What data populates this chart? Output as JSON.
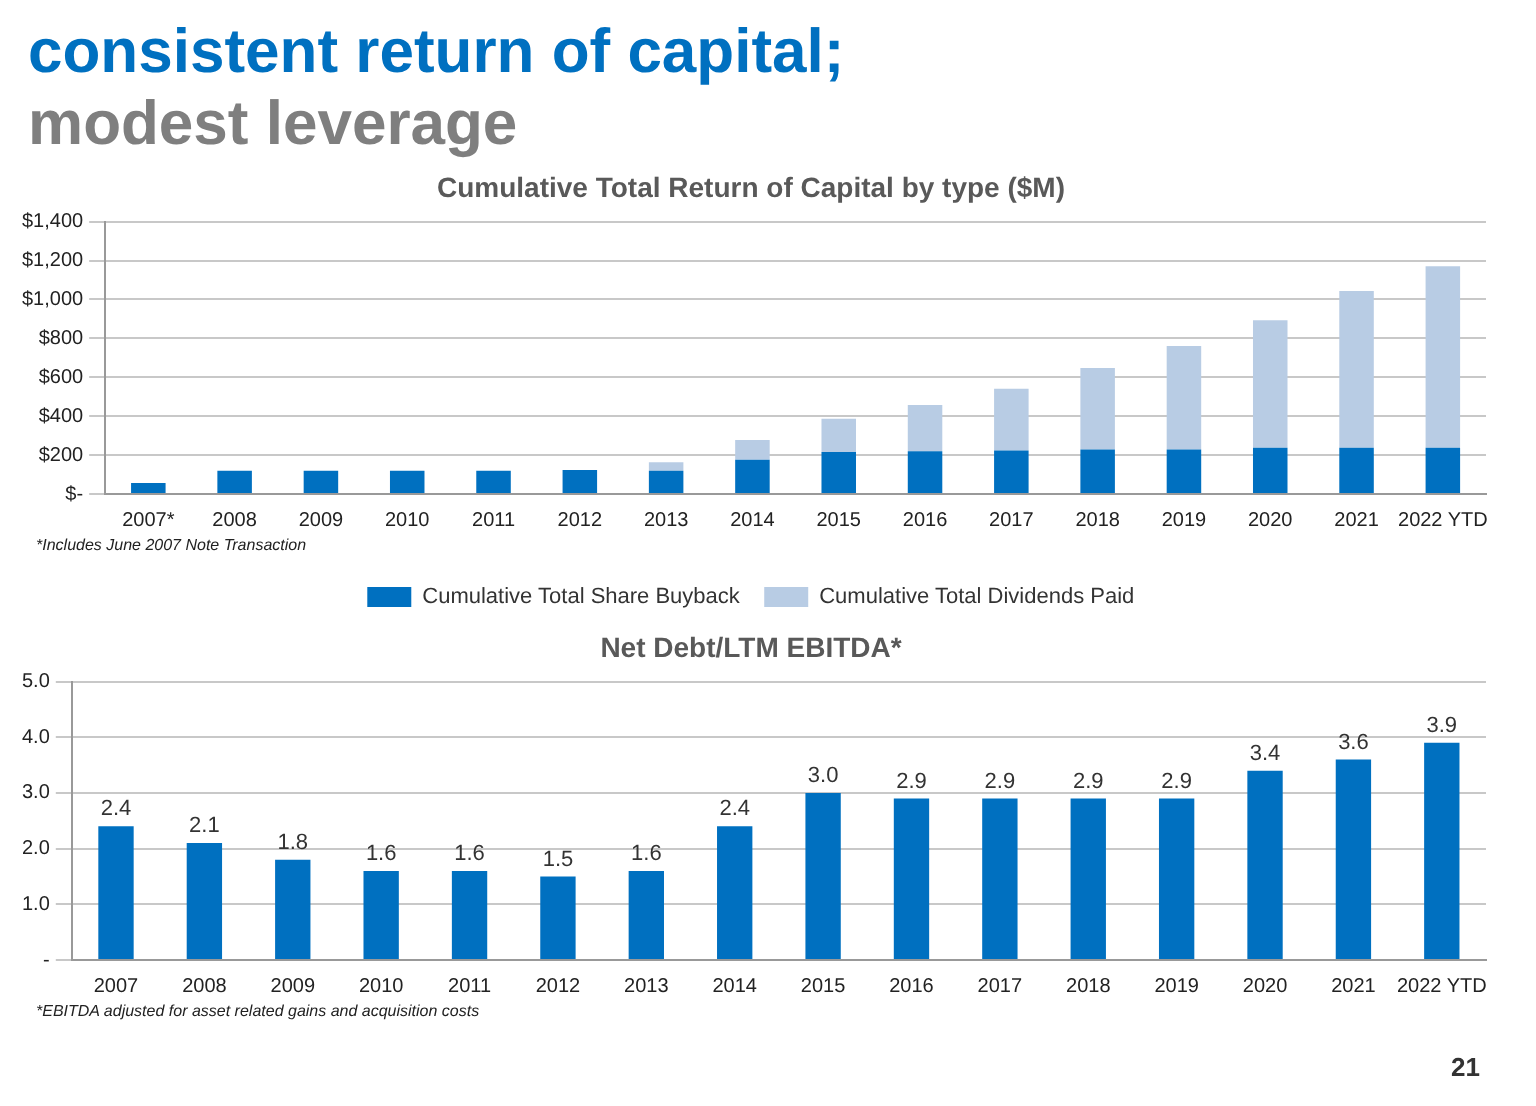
{
  "chart_data": [
    {
      "type": "bar",
      "title": "Cumulative Total Return of Capital by type ($M)",
      "stacked": true,
      "legend": "bottom",
      "grid": "y",
      "categories": [
        "2007*",
        "2008",
        "2009",
        "2010",
        "2011",
        "2012",
        "2013",
        "2014",
        "2015",
        "2016",
        "2017",
        "2018",
        "2019",
        "2020",
        "2021",
        "2022 YTD"
      ],
      "series": [
        {
          "name": "Cumulative Total Share Buyback",
          "color": "#0070c0",
          "values": [
            57,
            119,
            120,
            120,
            120,
            123,
            120,
            176,
            216,
            220,
            224,
            229,
            229,
            238,
            238,
            238
          ]
        },
        {
          "name": "Cumulative Total Dividends Paid",
          "color": "#b8cce4",
          "values": [
            0,
            0,
            0,
            0,
            0,
            0,
            43,
            101,
            171,
            238,
            317,
            418,
            532,
            655,
            805,
            932
          ]
        }
      ],
      "ylim": [
        0,
        1400
      ],
      "yticks": [
        {
          "value": 0,
          "label": "$-"
        },
        {
          "value": 200,
          "label": "$200"
        },
        {
          "value": 400,
          "label": "$400"
        },
        {
          "value": 600,
          "label": "$600"
        },
        {
          "value": 800,
          "label": "$800"
        },
        {
          "value": 1000,
          "label": "$1,000"
        },
        {
          "value": 1200,
          "label": "$1,200"
        },
        {
          "value": 1400,
          "label": "$1,400"
        }
      ],
      "annotations": [
        "consistent return of capital;",
        "modest leverage",
        "*Includes June 2007 Note Transaction"
      ]
    },
    {
      "type": "bar",
      "title": "Net Debt/LTM EBITDA*",
      "grid": "y",
      "categories": [
        "2007",
        "2008",
        "2009",
        "2010",
        "2011",
        "2012",
        "2013",
        "2014",
        "2015",
        "2016",
        "2017",
        "2018",
        "2019",
        "2020",
        "2021",
        "2022 YTD"
      ],
      "values": [
        2.4,
        2.1,
        1.8,
        1.6,
        1.6,
        1.5,
        1.6,
        2.4,
        3.0,
        2.9,
        2.9,
        2.9,
        2.9,
        3.4,
        3.6,
        3.9
      ],
      "color": "#0070c0",
      "value_labels": [
        "2.4",
        "2.1",
        "1.8",
        "1.6",
        "1.6",
        "1.5",
        "1.6",
        "2.4",
        "3.0",
        "2.9",
        "2.9",
        "2.9",
        "2.9",
        "3.4",
        "3.6",
        "3.9"
      ],
      "ylim": [
        0,
        5
      ],
      "yticks": [
        {
          "value": 0,
          "label": "-"
        },
        {
          "value": 1,
          "label": "1.0"
        },
        {
          "value": 2,
          "label": "2.0"
        },
        {
          "value": 3,
          "label": "3.0"
        },
        {
          "value": 4,
          "label": "4.0"
        },
        {
          "value": 5,
          "label": "5.0"
        }
      ],
      "annotations": [
        "*EBITDA adjusted for asset related gains and acquisition costs",
        "21"
      ]
    }
  ]
}
